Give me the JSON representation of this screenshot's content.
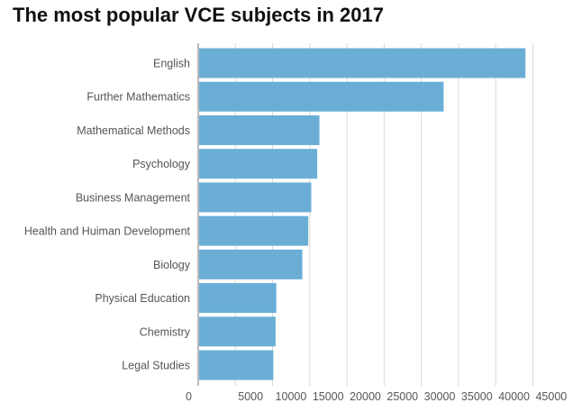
{
  "chart_data": {
    "type": "bar",
    "orientation": "horizontal",
    "title": "The most popular VCE subjects in 2017",
    "categories": [
      "English",
      "Further Mathematics",
      "Mathematical Methods",
      "Psychology",
      "Business Management",
      "Health and Huiman Development",
      "Biology",
      "Physical Education",
      "Chemistry",
      "Legal Studies"
    ],
    "values": [
      44000,
      33000,
      16300,
      16000,
      15200,
      14800,
      14000,
      10500,
      10400,
      10100
    ],
    "xlim": [
      0,
      47000
    ],
    "xticks": [
      0,
      5000,
      10000,
      15000,
      20000,
      25000,
      30000,
      35000,
      40000,
      45000
    ],
    "xtick_labels": [
      "0",
      "5000",
      "10000",
      "15000",
      "20000",
      "25000",
      "30000",
      "35000",
      "40000",
      "45000"
    ],
    "bar_color": "#6aaed6",
    "grid": true,
    "legend": "none"
  }
}
